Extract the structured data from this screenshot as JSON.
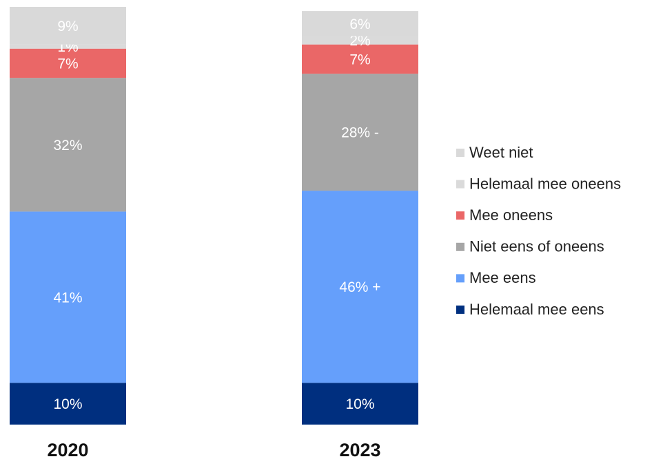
{
  "chart_data": {
    "type": "stacked-bar",
    "categories": [
      "2020",
      "2023"
    ],
    "series": [
      {
        "name": "Helemaal mee eens",
        "color": "#002f7f",
        "values": [
          10,
          10
        ],
        "value_labels": [
          "10%",
          "10%"
        ]
      },
      {
        "name": "Mee eens",
        "color": "#659ffb",
        "values": [
          41,
          46
        ],
        "value_labels": [
          "41%",
          "46% +"
        ]
      },
      {
        "name": "Niet eens of oneens",
        "color": "#a6a6a6",
        "values": [
          32,
          28
        ],
        "value_labels": [
          "32%",
          "28% -"
        ]
      },
      {
        "name": "Mee oneens",
        "color": "#ea6767",
        "values": [
          7,
          7
        ],
        "value_labels": [
          "7%",
          "7%"
        ]
      },
      {
        "name": "Helemaal mee oneens",
        "color": "#dadada",
        "values": [
          1,
          2
        ],
        "value_labels": [
          "1%",
          "2%"
        ]
      },
      {
        "name": "Weet niet",
        "color": "#d9d9d9",
        "values": [
          9,
          6
        ],
        "value_labels": [
          "9%",
          "6%"
        ]
      }
    ]
  }
}
